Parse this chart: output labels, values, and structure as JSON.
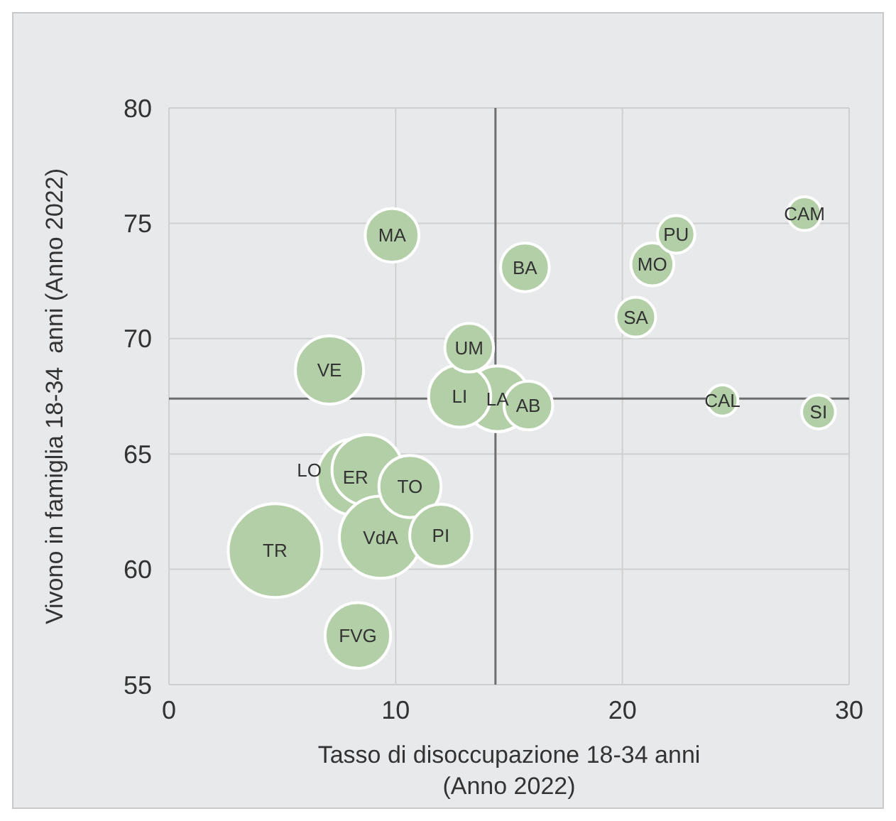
{
  "chart_data": {
    "type": "bubble",
    "xlabel": "Tasso di disoccupazione 18-34 anni\n(Anno 2022)",
    "ylabel": "Vivono in famiglia 18-34  anni (Anno 2022)",
    "x": [
      4.68,
      8.23,
      8.75,
      9.33,
      7.08,
      14.49,
      8.33,
      10.63,
      12.82,
      11.99,
      15.85,
      9.84,
      15.7,
      13.24,
      21.32,
      20.59,
      22.37,
      28.03,
      28.65,
      24.41
    ],
    "values": [
      60.81,
      64.0,
      64.3,
      61.39,
      68.64,
      67.39,
      57.13,
      63.59,
      67.51,
      61.47,
      67.1,
      74.48,
      73.09,
      69.61,
      73.22,
      70.93,
      74.52,
      75.42,
      66.82,
      67.32
    ],
    "sizes": [
      1,
      0.67,
      0.57,
      0.77,
      0.53,
      0.49,
      0.49,
      0.44,
      0.44,
      0.44,
      0.27,
      0.33,
      0.27,
      0.27,
      0.21,
      0.18,
      0.16,
      0.13,
      0.13,
      0.11
    ],
    "color": "#b3cfa7",
    "annotations": [
      {
        "text": "TR",
        "x": 4.68,
        "y": 60.81
      },
      {
        "text": "ER",
        "x": 8.23,
        "y": 64.0
      },
      {
        "text": "LO",
        "x": 8.75,
        "y": 64.3
      },
      {
        "text": "VdA",
        "x": 9.33,
        "y": 61.39
      },
      {
        "text": "VE",
        "x": 7.08,
        "y": 68.64
      },
      {
        "text": "LA",
        "x": 14.49,
        "y": 67.39
      },
      {
        "text": "FVG",
        "x": 8.33,
        "y": 57.13
      },
      {
        "text": "TO",
        "x": 10.63,
        "y": 63.59
      },
      {
        "text": "LI",
        "x": 12.82,
        "y": 67.51
      },
      {
        "text": "PI",
        "x": 11.99,
        "y": 61.47
      },
      {
        "text": "AB",
        "x": 15.85,
        "y": 67.1
      },
      {
        "text": "MA",
        "x": 9.84,
        "y": 74.48
      },
      {
        "text": "BA",
        "x": 15.7,
        "y": 73.09
      },
      {
        "text": "UM",
        "x": 13.24,
        "y": 69.61
      },
      {
        "text": "MO",
        "x": 21.32,
        "y": 73.22
      },
      {
        "text": "SA",
        "x": 20.59,
        "y": 70.93
      },
      {
        "text": "PU",
        "x": 22.37,
        "y": 74.52
      },
      {
        "text": "CAM",
        "x": 28.03,
        "y": 75.42
      },
      {
        "text": "SI",
        "x": 28.65,
        "y": 66.82
      },
      {
        "text": "CAL",
        "x": 24.41,
        "y": 67.32
      }
    ],
    "ref_lines": [
      {
        "axis": "x",
        "value": 14.4,
        "color": "#6e6e6e"
      },
      {
        "axis": "y",
        "value": 67.4,
        "color": "#6e6e6e"
      }
    ],
    "xlim": [
      0,
      30
    ],
    "ylim": [
      55,
      80
    ],
    "xticks": [
      0,
      10,
      20,
      30
    ],
    "yticks": [
      55,
      60,
      65,
      70,
      75,
      80
    ],
    "grid": true
  }
}
